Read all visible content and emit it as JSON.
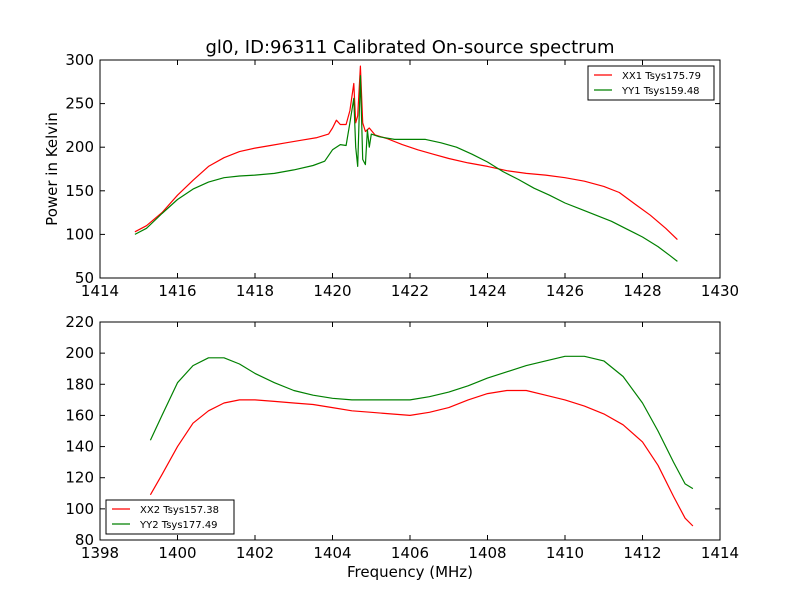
{
  "figure": {
    "title": "gl0, ID:96311 Calibrated On-source spectrum"
  },
  "chart_data": [
    {
      "type": "line",
      "title": "gl0, ID:96311 Calibrated On-source spectrum",
      "xlabel": "",
      "ylabel": "Power in Kelvin",
      "xlim": [
        1414,
        1430
      ],
      "ylim": [
        50,
        300
      ],
      "xticks": [
        1414,
        1416,
        1418,
        1420,
        1422,
        1424,
        1426,
        1428,
        1430
      ],
      "yticks": [
        50,
        100,
        150,
        200,
        250,
        300
      ],
      "grid": false,
      "legend_position": "top-right",
      "series": [
        {
          "name": "XX1 Tsys175.79",
          "color": "#ff0000",
          "points": [
            [
              1414.9,
              103
            ],
            [
              1415.2,
              110
            ],
            [
              1415.6,
              125
            ],
            [
              1416.0,
              145
            ],
            [
              1416.4,
              162
            ],
            [
              1416.8,
              178
            ],
            [
              1417.2,
              188
            ],
            [
              1417.6,
              195
            ],
            [
              1418.0,
              199
            ],
            [
              1418.4,
              202
            ],
            [
              1418.8,
              205
            ],
            [
              1419.2,
              208
            ],
            [
              1419.6,
              211
            ],
            [
              1419.9,
              215
            ],
            [
              1420.0,
              222
            ],
            [
              1420.1,
              231
            ],
            [
              1420.2,
              226
            ],
            [
              1420.35,
              226
            ],
            [
              1420.45,
              242
            ],
            [
              1420.55,
              273
            ],
            [
              1420.6,
              228
            ],
            [
              1420.65,
              236
            ],
            [
              1420.72,
              293
            ],
            [
              1420.78,
              228
            ],
            [
              1420.85,
              218
            ],
            [
              1420.95,
              222
            ],
            [
              1421.1,
              214
            ],
            [
              1421.4,
              210
            ],
            [
              1421.8,
              203
            ],
            [
              1422.2,
              197
            ],
            [
              1422.6,
              192
            ],
            [
              1423.0,
              187
            ],
            [
              1423.5,
              182
            ],
            [
              1424.0,
              178
            ],
            [
              1424.5,
              173
            ],
            [
              1425.0,
              170
            ],
            [
              1425.5,
              168
            ],
            [
              1426.0,
              165
            ],
            [
              1426.5,
              161
            ],
            [
              1427.0,
              155
            ],
            [
              1427.4,
              148
            ],
            [
              1427.8,
              135
            ],
            [
              1428.2,
              122
            ],
            [
              1428.6,
              107
            ],
            [
              1428.9,
              94
            ]
          ]
        },
        {
          "name": "YY1 Tsys159.48",
          "color": "#008000",
          "points": [
            [
              1414.9,
              100
            ],
            [
              1415.2,
              107
            ],
            [
              1415.6,
              124
            ],
            [
              1416.0,
              140
            ],
            [
              1416.4,
              152
            ],
            [
              1416.8,
              160
            ],
            [
              1417.2,
              165
            ],
            [
              1417.6,
              167
            ],
            [
              1418.0,
              168
            ],
            [
              1418.5,
              170
            ],
            [
              1419.0,
              174
            ],
            [
              1419.5,
              179
            ],
            [
              1419.8,
              184
            ],
            [
              1420.0,
              197
            ],
            [
              1420.2,
              203
            ],
            [
              1420.35,
              202
            ],
            [
              1420.45,
              228
            ],
            [
              1420.55,
              256
            ],
            [
              1420.6,
              200
            ],
            [
              1420.65,
              178
            ],
            [
              1420.72,
              282
            ],
            [
              1420.78,
              186
            ],
            [
              1420.85,
              180
            ],
            [
              1420.9,
              220
            ],
            [
              1420.95,
              200
            ],
            [
              1421.0,
              215
            ],
            [
              1421.2,
              212
            ],
            [
              1421.6,
              209
            ],
            [
              1422.0,
              209
            ],
            [
              1422.4,
              209
            ],
            [
              1422.8,
              205
            ],
            [
              1423.2,
              200
            ],
            [
              1423.6,
              192
            ],
            [
              1424.0,
              183
            ],
            [
              1424.4,
              172
            ],
            [
              1424.8,
              163
            ],
            [
              1425.2,
              153
            ],
            [
              1425.6,
              145
            ],
            [
              1426.0,
              136
            ],
            [
              1426.4,
              129
            ],
            [
              1426.8,
              122
            ],
            [
              1427.2,
              115
            ],
            [
              1427.6,
              106
            ],
            [
              1428.0,
              97
            ],
            [
              1428.4,
              86
            ],
            [
              1428.7,
              76
            ],
            [
              1428.9,
              69
            ]
          ]
        }
      ]
    },
    {
      "type": "line",
      "title": "",
      "xlabel": "Frequency (MHz)",
      "ylabel": "",
      "xlim": [
        1398,
        1414
      ],
      "ylim": [
        80,
        220
      ],
      "xticks": [
        1398,
        1400,
        1402,
        1404,
        1406,
        1408,
        1410,
        1412,
        1414
      ],
      "yticks": [
        80,
        100,
        120,
        140,
        160,
        180,
        200,
        220
      ],
      "grid": false,
      "legend_position": "bottom-left",
      "series": [
        {
          "name": "XX2 Tsys157.38",
          "color": "#ff0000",
          "points": [
            [
              1399.3,
              109
            ],
            [
              1399.6,
              122
            ],
            [
              1400.0,
              140
            ],
            [
              1400.4,
              155
            ],
            [
              1400.8,
              163
            ],
            [
              1401.2,
              168
            ],
            [
              1401.6,
              170
            ],
            [
              1402.0,
              170
            ],
            [
              1402.5,
              169
            ],
            [
              1403.0,
              168
            ],
            [
              1403.5,
              167
            ],
            [
              1404.0,
              165
            ],
            [
              1404.5,
              163
            ],
            [
              1405.0,
              162
            ],
            [
              1405.5,
              161
            ],
            [
              1406.0,
              160
            ],
            [
              1406.5,
              162
            ],
            [
              1407.0,
              165
            ],
            [
              1407.5,
              170
            ],
            [
              1408.0,
              174
            ],
            [
              1408.5,
              176
            ],
            [
              1409.0,
              176
            ],
            [
              1409.5,
              173
            ],
            [
              1410.0,
              170
            ],
            [
              1410.5,
              166
            ],
            [
              1411.0,
              161
            ],
            [
              1411.5,
              154
            ],
            [
              1412.0,
              143
            ],
            [
              1412.4,
              128
            ],
            [
              1412.8,
              108
            ],
            [
              1413.1,
              94
            ],
            [
              1413.3,
              89
            ]
          ]
        },
        {
          "name": "YY2 Tsys177.49",
          "color": "#008000",
          "points": [
            [
              1399.3,
              144
            ],
            [
              1399.6,
              160
            ],
            [
              1400.0,
              181
            ],
            [
              1400.4,
              192
            ],
            [
              1400.8,
              197
            ],
            [
              1401.2,
              197
            ],
            [
              1401.6,
              193
            ],
            [
              1402.0,
              187
            ],
            [
              1402.5,
              181
            ],
            [
              1403.0,
              176
            ],
            [
              1403.5,
              173
            ],
            [
              1404.0,
              171
            ],
            [
              1404.5,
              170
            ],
            [
              1405.0,
              170
            ],
            [
              1405.5,
              170
            ],
            [
              1406.0,
              170
            ],
            [
              1406.5,
              172
            ],
            [
              1407.0,
              175
            ],
            [
              1407.5,
              179
            ],
            [
              1408.0,
              184
            ],
            [
              1408.5,
              188
            ],
            [
              1409.0,
              192
            ],
            [
              1409.5,
              195
            ],
            [
              1410.0,
              198
            ],
            [
              1410.5,
              198
            ],
            [
              1411.0,
              195
            ],
            [
              1411.5,
              185
            ],
            [
              1412.0,
              168
            ],
            [
              1412.4,
              150
            ],
            [
              1412.8,
              130
            ],
            [
              1413.1,
              116
            ],
            [
              1413.3,
              113
            ]
          ]
        }
      ]
    }
  ]
}
